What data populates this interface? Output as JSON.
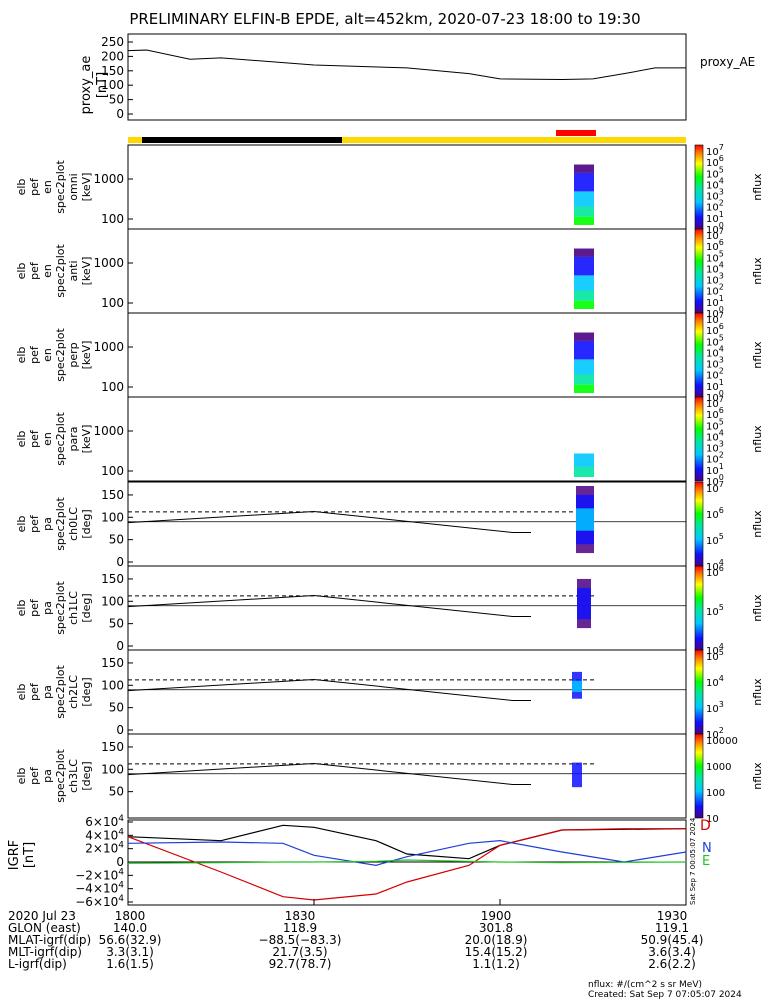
{
  "title": "PRELIMINARY ELFIN-B EPDE, alt=452km, 2020-07-23 18:00 to 19:30",
  "ae_panel": {
    "ylabel": [
      "proxy_ae",
      "[nT]"
    ],
    "label_right": "proxy_AE",
    "yticks": [
      "250",
      "200",
      "150",
      "100",
      "50",
      "0"
    ]
  },
  "bar_colors": {
    "eclipse": "#000000",
    "sunlit": "#ffd800",
    "science": "#ff0000"
  },
  "spec_panels": [
    {
      "ylabel": [
        "elb",
        "pef",
        "en",
        "spec2plot",
        "omni",
        "[keV]"
      ],
      "yticks": [
        "1000",
        "100"
      ]
    },
    {
      "ylabel": [
        "elb",
        "pef",
        "en",
        "spec2plot",
        "anti",
        "[keV]"
      ],
      "yticks": [
        "1000",
        "100"
      ]
    },
    {
      "ylabel": [
        "elb",
        "pef",
        "en",
        "spec2plot",
        "perp",
        "[keV]"
      ],
      "yticks": [
        "1000",
        "100"
      ]
    },
    {
      "ylabel": [
        "elb",
        "pef",
        "en",
        "spec2plot",
        "para",
        "[keV]"
      ],
      "yticks": [
        "1000",
        "100"
      ]
    }
  ],
  "pa_panels": [
    {
      "ylabel": [
        "elb",
        "pef",
        "pa",
        "spec2plot",
        "ch0LC",
        "[deg]"
      ],
      "yticks": [
        "150",
        "100",
        "50",
        "0"
      ]
    },
    {
      "ylabel": [
        "elb",
        "pef",
        "pa",
        "spec2plot",
        "ch1LC",
        "[deg]"
      ],
      "yticks": [
        "150",
        "100",
        "50",
        "0"
      ]
    },
    {
      "ylabel": [
        "elb",
        "pef",
        "pa",
        "spec2plot",
        "ch2LC",
        "[deg]"
      ],
      "yticks": [
        "150",
        "100",
        "50",
        "0"
      ]
    },
    {
      "ylabel": [
        "elb",
        "pef",
        "pa",
        "spec2plot",
        "ch3LC",
        "[deg]"
      ],
      "yticks": [
        "150",
        "100",
        "50"
      ]
    }
  ],
  "colorbars": [
    {
      "labels": [
        "10",
        "10",
        "10",
        "10",
        "10",
        "10",
        "10",
        "10"
      ],
      "exps": [
        "7",
        "6",
        "5",
        "4",
        "3",
        "2",
        "1",
        "0"
      ],
      "unit": "nflux"
    },
    {
      "labels": [
        "10",
        "10",
        "10",
        "10",
        "10",
        "10",
        "10",
        "10"
      ],
      "exps": [
        "7",
        "6",
        "5",
        "4",
        "3",
        "2",
        "1",
        "0"
      ],
      "unit": "nflux"
    },
    {
      "labels": [
        "10",
        "10",
        "10",
        "10",
        "10",
        "10",
        "10",
        "10"
      ],
      "exps": [
        "7",
        "6",
        "5",
        "4",
        "3",
        "2",
        "1",
        "0"
      ],
      "unit": "nflux"
    },
    {
      "labels": [
        "10",
        "10",
        "10",
        "10",
        "10",
        "10",
        "10",
        "10"
      ],
      "exps": [
        "7",
        "6",
        "5",
        "4",
        "3",
        "2",
        "1",
        "0"
      ],
      "unit": "nflux"
    },
    {
      "labels": [
        "10",
        "10",
        "10",
        "10"
      ],
      "exps": [
        "7",
        "6",
        "5",
        "4"
      ],
      "unit": "nflux"
    },
    {
      "labels": [
        "10",
        "10",
        "10"
      ],
      "exps": [
        "6",
        "5",
        "4"
      ],
      "unit": "nflux"
    },
    {
      "labels": [
        "10",
        "10",
        "10",
        "10"
      ],
      "exps": [
        "5",
        "4",
        "3",
        "2"
      ],
      "unit": "nflux"
    },
    {
      "labels": [
        "10000",
        "1000",
        "100",
        "10"
      ],
      "exps": [
        "",
        "",
        "",
        ""
      ],
      "unit": "nflux"
    }
  ],
  "igrf_panel": {
    "ylabel": [
      "IGRF",
      "[nT]"
    ],
    "yticks": [
      "6×10",
      "4×10",
      "2×10",
      "0",
      "−2×10",
      "−4×10",
      "−6×10"
    ],
    "ytick_exp": "4",
    "legend": [
      {
        "name": "D",
        "color": "#d40000"
      },
      {
        "name": "N",
        "color": "#1f3fd8"
      },
      {
        "name": "E",
        "color": "#23c423"
      }
    ],
    "stamp": "Sat Sep  7 00:05:07 2024"
  },
  "chart_data": {
    "type": "line",
    "x_range": [
      "18:00",
      "19:30"
    ],
    "x_ticks": [
      "1800",
      "1830",
      "1900",
      "1930"
    ],
    "proxy_ae": {
      "x_min": [
        0,
        3,
        10,
        15,
        30,
        45,
        55,
        60,
        70,
        75,
        80,
        85,
        90
      ],
      "nT": [
        220,
        222,
        190,
        195,
        170,
        160,
        140,
        122,
        120,
        122,
        140,
        160,
        160
      ]
    },
    "igrf": {
      "x_min": [
        0,
        15,
        25,
        30,
        40,
        45,
        55,
        60,
        70,
        80,
        90
      ],
      "black": [
        38000,
        32000,
        55000,
        52000,
        32000,
        12000,
        5000,
        25000,
        48000,
        49000,
        50000
      ],
      "D_red": [
        38000,
        -15000,
        -52000,
        -57000,
        -48000,
        -30000,
        -5000,
        25000,
        48000,
        50000,
        50000
      ],
      "N_blue": [
        28000,
        30000,
        28000,
        10000,
        -5000,
        8000,
        28000,
        32000,
        15000,
        0,
        15000
      ],
      "E_green": [
        -2000,
        -1000,
        0,
        0,
        1000,
        3000,
        1000,
        0,
        -1000,
        -500,
        0
      ]
    },
    "lc_dashed_deg": 112,
    "lc_solid_deg": [
      {
        "x_min": 0,
        "deg": 88
      },
      {
        "x_min": 30,
        "deg": 113
      },
      {
        "x_min": 62,
        "deg": 66
      },
      {
        "x_min": 65,
        "deg": 66
      }
    ]
  },
  "footer": {
    "rows": [
      {
        "label": "2020 Jul 23",
        "vals": [
          "1800",
          "1830",
          "1900",
          "1930"
        ]
      },
      {
        "label": "GLON (east)",
        "vals": [
          "140.0",
          "118.9",
          "301.8",
          "119.1"
        ]
      },
      {
        "label": "MLAT-igrf(dip)",
        "vals": [
          "56.6(32.9)",
          "−88.5(−83.3)",
          "20.0(18.9)",
          "50.9(45.4)"
        ]
      },
      {
        "label": "MLT-igrf(dip)",
        "vals": [
          "3.3(3.1)",
          "21.7(3.5)",
          "15.4(15.2)",
          "3.6(3.4)"
        ]
      },
      {
        "label": "L-igrf(dip)",
        "vals": [
          "1.6(1.5)",
          "92.7(78.7)",
          "1.1(1.2)",
          "2.6(2.2)"
        ]
      }
    ],
    "units_note": "nflux: #/(cm^2 s sr MeV)",
    "created": "Created: Sat Sep  7 07:05:07 2024"
  }
}
